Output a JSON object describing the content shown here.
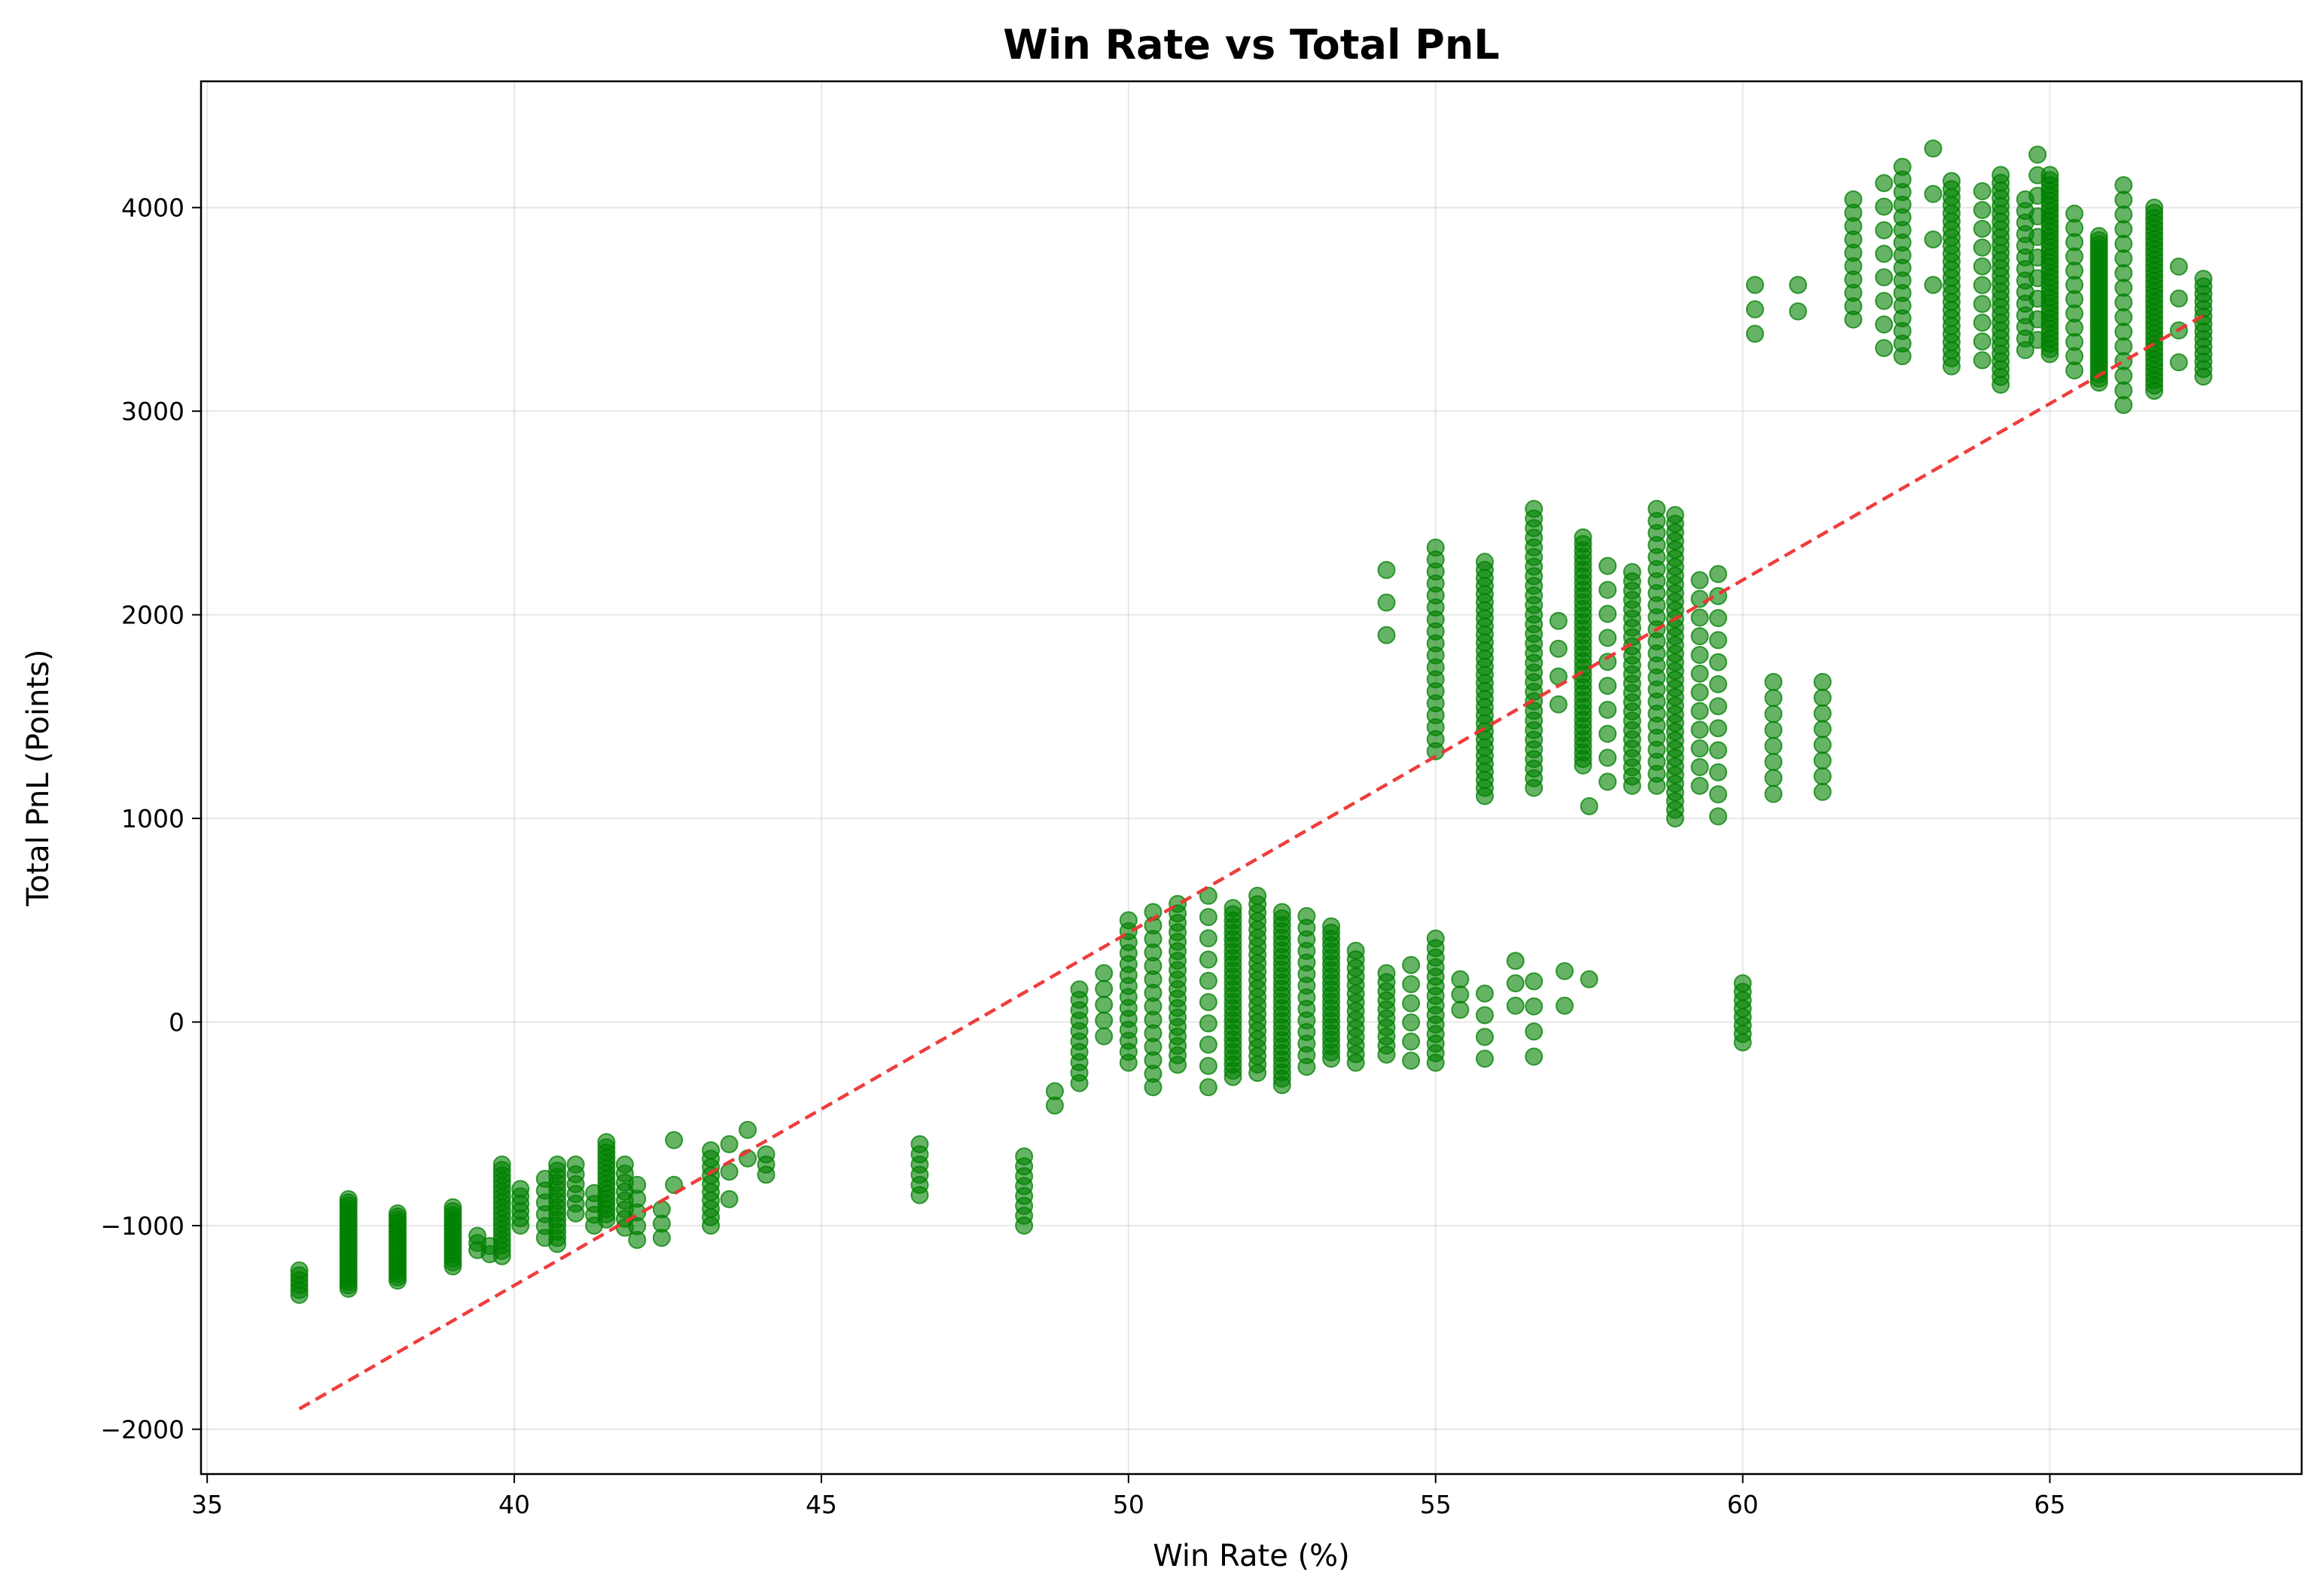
{
  "chart_data": {
    "type": "scatter",
    "title": "Win Rate vs Total PnL",
    "xlabel": "Win Rate (%)",
    "ylabel": "Total PnL (Points)",
    "xlim": [
      34.9,
      69.1
    ],
    "ylim": [
      -2220,
      4620
    ],
    "x_ticks": [
      35,
      40,
      45,
      50,
      55,
      60,
      65
    ],
    "x_tick_labels": [
      "35",
      "40",
      "45",
      "50",
      "55",
      "60",
      "65"
    ],
    "y_ticks": [
      -2000,
      -1000,
      0,
      1000,
      2000,
      3000,
      4000
    ],
    "y_tick_labels": [
      "−2000",
      "−1000",
      "0",
      "1000",
      "2000",
      "3000",
      "4000"
    ],
    "grid": true,
    "colors": {
      "points": "#008000",
      "trend": "#ee3333"
    },
    "trend_line": {
      "style": "dashed",
      "x": [
        36.5,
        67.5
      ],
      "y": [
        -1900,
        3470
      ]
    },
    "columns": [
      {
        "x": 36.5,
        "y_min": -1340,
        "y_max": -1220,
        "n": 6
      },
      {
        "x": 37.3,
        "y_min": -1310,
        "y_max": -870,
        "n": 28
      },
      {
        "x": 38.1,
        "y_min": -1270,
        "y_max": -940,
        "n": 22
      },
      {
        "x": 39.0,
        "y_min": -1200,
        "y_max": -910,
        "n": 16
      },
      {
        "x": 39.4,
        "y_min": -1120,
        "y_max": -1050,
        "n": 3
      },
      {
        "x": 39.6,
        "y_min": -1140,
        "y_max": -1100,
        "n": 2
      },
      {
        "x": 39.8,
        "y_min": -1150,
        "y_max": -700,
        "n": 18
      },
      {
        "x": 40.1,
        "y_min": -1000,
        "y_max": -820,
        "n": 6
      },
      {
        "x": 40.5,
        "y_min": -1060,
        "y_max": -770,
        "n": 6
      },
      {
        "x": 40.7,
        "y_min": -1090,
        "y_max": -700,
        "n": 14
      },
      {
        "x": 41.0,
        "y_min": -940,
        "y_max": -700,
        "n": 6
      },
      {
        "x": 41.3,
        "y_min": -1000,
        "y_max": -840,
        "n": 4
      },
      {
        "x": 41.5,
        "y_min": -970,
        "y_max": -590,
        "n": 16
      },
      {
        "x": 41.8,
        "y_min": -1010,
        "y_max": -700,
        "n": 8
      },
      {
        "x": 42.0,
        "y_min": -1070,
        "y_max": -800,
        "n": 5
      },
      {
        "x": 42.4,
        "y_min": -1060,
        "y_max": -920,
        "n": 3
      },
      {
        "x": 42.6,
        "y_min": -800,
        "y_max": -580,
        "n": 2
      },
      {
        "x": 43.2,
        "y_min": -1000,
        "y_max": -630,
        "n": 10
      },
      {
        "x": 43.5,
        "y_min": -870,
        "y_max": -600,
        "n": 3
      },
      {
        "x": 43.8,
        "y_min": -670,
        "y_max": -530,
        "n": 2
      },
      {
        "x": 44.1,
        "y_min": -750,
        "y_max": -650,
        "n": 3
      },
      {
        "x": 46.6,
        "y_min": -850,
        "y_max": -600,
        "n": 6
      },
      {
        "x": 48.3,
        "y_min": -1000,
        "y_max": -660,
        "n": 8
      },
      {
        "x": 48.8,
        "y_min": -410,
        "y_max": -340,
        "n": 2
      },
      {
        "x": 49.2,
        "y_min": -300,
        "y_max": 160,
        "n": 10
      },
      {
        "x": 49.6,
        "y_min": -70,
        "y_max": 240,
        "n": 5
      },
      {
        "x": 50.0,
        "y_min": -200,
        "y_max": 500,
        "n": 14
      },
      {
        "x": 50.4,
        "y_min": -320,
        "y_max": 540,
        "n": 14
      },
      {
        "x": 50.8,
        "y_min": -210,
        "y_max": 580,
        "n": 18
      },
      {
        "x": 51.3,
        "y_min": -320,
        "y_max": 620,
        "n": 10
      },
      {
        "x": 51.7,
        "y_min": -270,
        "y_max": 560,
        "n": 28
      },
      {
        "x": 52.1,
        "y_min": -250,
        "y_max": 620,
        "n": 22
      },
      {
        "x": 52.5,
        "y_min": -310,
        "y_max": 540,
        "n": 28
      },
      {
        "x": 52.9,
        "y_min": -220,
        "y_max": 520,
        "n": 14
      },
      {
        "x": 53.3,
        "y_min": -180,
        "y_max": 470,
        "n": 22
      },
      {
        "x": 53.7,
        "y_min": -200,
        "y_max": 350,
        "n": 14
      },
      {
        "x": 54.2,
        "y_min": -160,
        "y_max": 240,
        "n": 10
      },
      {
        "x": 54.6,
        "y_min": -190,
        "y_max": 280,
        "n": 6
      },
      {
        "x": 55.0,
        "y_min": -200,
        "y_max": 410,
        "n": 14
      },
      {
        "x": 55.4,
        "y_min": 60,
        "y_max": 210,
        "n": 3
      },
      {
        "x": 55.8,
        "y_min": -180,
        "y_max": 140,
        "n": 4
      },
      {
        "x": 56.3,
        "y_min": 80,
        "y_max": 300,
        "n": 3
      },
      {
        "x": 56.6,
        "y_min": -170,
        "y_max": 200,
        "n": 4
      },
      {
        "x": 57.1,
        "y_min": 80,
        "y_max": 250,
        "n": 2
      },
      {
        "x": 57.5,
        "y_min": 210,
        "y_max": 210,
        "n": 1
      },
      {
        "x": 54.2,
        "y_min": 1900,
        "y_max": 2220,
        "n": 3
      },
      {
        "x": 55.0,
        "y_min": 1330,
        "y_max": 2330,
        "n": 18
      },
      {
        "x": 55.8,
        "y_min": 1110,
        "y_max": 2260,
        "n": 30
      },
      {
        "x": 56.6,
        "y_min": 1150,
        "y_max": 2520,
        "n": 30
      },
      {
        "x": 57.0,
        "y_min": 1560,
        "y_max": 1970,
        "n": 4
      },
      {
        "x": 57.4,
        "y_min": 1260,
        "y_max": 2380,
        "n": 36
      },
      {
        "x": 57.5,
        "y_min": 1060,
        "y_max": 1060,
        "n": 1
      },
      {
        "x": 57.8,
        "y_min": 1180,
        "y_max": 2240,
        "n": 10
      },
      {
        "x": 58.2,
        "y_min": 1160,
        "y_max": 2210,
        "n": 24
      },
      {
        "x": 58.6,
        "y_min": 1160,
        "y_max": 2520,
        "n": 24
      },
      {
        "x": 58.9,
        "y_min": 1000,
        "y_max": 2490,
        "n": 36
      },
      {
        "x": 59.3,
        "y_min": 1160,
        "y_max": 2170,
        "n": 12
      },
      {
        "x": 59.6,
        "y_min": 1010,
        "y_max": 2200,
        "n": 12
      },
      {
        "x": 60.5,
        "y_min": 1120,
        "y_max": 1670,
        "n": 8
      },
      {
        "x": 61.3,
        "y_min": 1130,
        "y_max": 1670,
        "n": 8
      },
      {
        "x": 60.0,
        "y_min": -100,
        "y_max": 190,
        "n": 8
      },
      {
        "x": 60.2,
        "y_min": 3380,
        "y_max": 3620,
        "n": 3
      },
      {
        "x": 60.9,
        "y_min": 3490,
        "y_max": 3620,
        "n": 2
      },
      {
        "x": 61.8,
        "y_min": 3450,
        "y_max": 4040,
        "n": 10
      },
      {
        "x": 62.3,
        "y_min": 3310,
        "y_max": 4120,
        "n": 8
      },
      {
        "x": 62.6,
        "y_min": 3270,
        "y_max": 4200,
        "n": 16
      },
      {
        "x": 63.1,
        "y_min": 3620,
        "y_max": 4290,
        "n": 4
      },
      {
        "x": 63.4,
        "y_min": 3220,
        "y_max": 4130,
        "n": 24
      },
      {
        "x": 63.9,
        "y_min": 3250,
        "y_max": 4080,
        "n": 10
      },
      {
        "x": 64.2,
        "y_min": 3130,
        "y_max": 4160,
        "n": 28
      },
      {
        "x": 64.6,
        "y_min": 3300,
        "y_max": 4040,
        "n": 14
      },
      {
        "x": 64.8,
        "y_min": 3350,
        "y_max": 4260,
        "n": 10
      },
      {
        "x": 65.0,
        "y_min": 3280,
        "y_max": 4160,
        "n": 36
      },
      {
        "x": 65.4,
        "y_min": 3200,
        "y_max": 3970,
        "n": 12
      },
      {
        "x": 65.8,
        "y_min": 3140,
        "y_max": 3860,
        "n": 36
      },
      {
        "x": 66.2,
        "y_min": 3030,
        "y_max": 4110,
        "n": 16
      },
      {
        "x": 66.7,
        "y_min": 3100,
        "y_max": 4000,
        "n": 36
      },
      {
        "x": 67.1,
        "y_min": 3240,
        "y_max": 3710,
        "n": 4
      },
      {
        "x": 67.5,
        "y_min": 3170,
        "y_max": 3650,
        "n": 14
      }
    ]
  }
}
